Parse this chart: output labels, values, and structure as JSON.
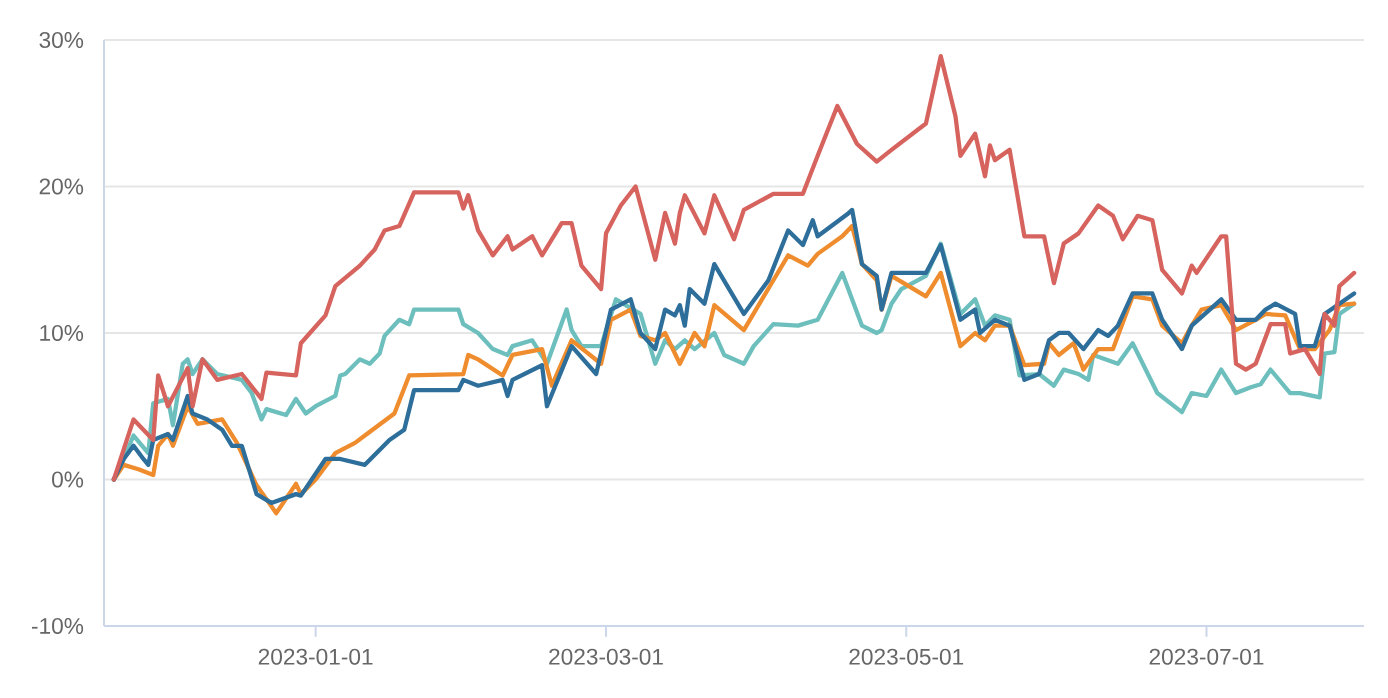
{
  "chart_data": {
    "type": "line",
    "grid": "y",
    "xlim": [
      "2022-11-19",
      "2023-08-02"
    ],
    "ylim": [
      -10,
      30
    ],
    "xticks": [
      {
        "value": "2023-01-01",
        "label": "2023-01-01"
      },
      {
        "value": "2023-03-01",
        "label": "2023-03-01"
      },
      {
        "value": "2023-05-01",
        "label": "2023-05-01"
      },
      {
        "value": "2023-07-01",
        "label": "2023-07-01"
      }
    ],
    "yticks": [
      {
        "value": -10,
        "label": "-10%"
      },
      {
        "value": 0,
        "label": "0%"
      },
      {
        "value": 10,
        "label": "10%"
      },
      {
        "value": 20,
        "label": "20%"
      },
      {
        "value": 30,
        "label": "30%"
      }
    ],
    "series": [
      {
        "color": "#6dbfbd",
        "x": [
          "2022-11-21",
          "2022-11-23",
          "2022-11-25",
          "2022-11-28",
          "2022-11-29",
          "2022-12-02",
          "2022-12-03",
          "2022-12-05",
          "2022-12-06",
          "2022-12-07",
          "2022-12-09",
          "2022-12-12",
          "2022-12-17",
          "2022-12-19",
          "2022-12-21",
          "2022-12-22",
          "2022-12-26",
          "2022-12-28",
          "2022-12-30",
          "2023-01-01",
          "2023-01-05",
          "2023-01-06",
          "2023-01-07",
          "2023-01-10",
          "2023-01-12",
          "2023-01-14",
          "2023-01-15",
          "2023-01-18",
          "2023-01-20",
          "2023-01-21",
          "2023-01-30",
          "2023-01-31",
          "2023-02-03",
          "2023-02-06",
          "2023-02-09",
          "2023-02-10",
          "2023-02-14",
          "2023-02-17",
          "2023-02-21",
          "2023-02-22",
          "2023-02-24",
          "2023-02-28",
          "2023-03-03",
          "2023-03-08",
          "2023-03-11",
          "2023-03-13",
          "2023-03-15",
          "2023-03-17",
          "2023-03-19",
          "2023-03-23",
          "2023-03-25",
          "2023-03-29",
          "2023-03-31",
          "2023-04-04",
          "2023-04-09",
          "2023-04-13",
          "2023-04-18",
          "2023-04-22",
          "2023-04-25",
          "2023-04-26",
          "2023-04-28",
          "2023-04-30",
          "2023-05-05",
          "2023-05-08",
          "2023-05-12",
          "2023-05-15",
          "2023-05-17",
          "2023-05-19",
          "2023-05-22",
          "2023-05-24",
          "2023-05-28",
          "2023-05-31",
          "2023-06-02",
          "2023-06-05",
          "2023-06-07",
          "2023-06-08",
          "2023-06-13",
          "2023-06-16",
          "2023-06-21",
          "2023-06-26",
          "2023-06-28",
          "2023-07-01",
          "2023-07-04",
          "2023-07-07",
          "2023-07-10",
          "2023-07-12",
          "2023-07-14",
          "2023-07-18",
          "2023-07-20",
          "2023-07-24",
          "2023-07-25",
          "2023-07-27",
          "2023-07-28",
          "2023-07-31"
        ],
        "values": [
          0,
          1.4,
          3,
          1.8,
          5.2,
          5.5,
          3.7,
          7.9,
          8.2,
          7.2,
          8.2,
          7.2,
          6.8,
          5.9,
          4.1,
          4.8,
          4.4,
          5.5,
          4.5,
          5,
          5.7,
          7.1,
          7.2,
          8.2,
          7.9,
          8.6,
          9.8,
          10.9,
          10.6,
          11.6,
          11.6,
          10.6,
          10,
          8.9,
          8.5,
          9.1,
          9.5,
          7.9,
          11.6,
          10.2,
          9.1,
          9.1,
          12.3,
          11.3,
          7.9,
          9.5,
          8.9,
          9.5,
          8.9,
          10,
          8.5,
          7.9,
          9.1,
          10.6,
          10.5,
          10.9,
          14.1,
          10.5,
          10,
          10.2,
          12,
          13,
          13.9,
          16.1,
          11.3,
          12.3,
          10.5,
          11.2,
          10.9,
          7.1,
          7.2,
          6.4,
          7.5,
          7.2,
          6.8,
          8.5,
          7.9,
          9.3,
          5.9,
          4.6,
          5.9,
          5.7,
          7.5,
          5.9,
          6.3,
          6.5,
          7.5,
          5.9,
          5.9,
          5.6,
          8.6,
          8.7,
          11.3,
          12
        ]
      },
      {
        "color": "#ef8c2e",
        "x": [
          "2022-11-21",
          "2022-11-23",
          "2022-11-26",
          "2022-11-29",
          "2022-11-30",
          "2022-12-02",
          "2022-12-03",
          "2022-12-06",
          "2022-12-08",
          "2022-12-13",
          "2022-12-16",
          "2022-12-20",
          "2022-12-24",
          "2022-12-28",
          "2022-12-29",
          "2023-01-01",
          "2023-01-05",
          "2023-01-09",
          "2023-01-11",
          "2023-01-17",
          "2023-01-20",
          "2023-01-31",
          "2023-02-01",
          "2023-02-03",
          "2023-02-08",
          "2023-02-10",
          "2023-02-16",
          "2023-02-18",
          "2023-02-22",
          "2023-02-28",
          "2023-03-02",
          "2023-03-06",
          "2023-03-08",
          "2023-03-11",
          "2023-03-13",
          "2023-03-16",
          "2023-03-19",
          "2023-03-21",
          "2023-03-23",
          "2023-03-29",
          "2023-04-04",
          "2023-04-07",
          "2023-04-11",
          "2023-04-13",
          "2023-04-18",
          "2023-04-20",
          "2023-04-22",
          "2023-04-25",
          "2023-04-26",
          "2023-04-28",
          "2023-05-05",
          "2023-05-08",
          "2023-05-12",
          "2023-05-15",
          "2023-05-17",
          "2023-05-19",
          "2023-05-22",
          "2023-05-25",
          "2023-05-29",
          "2023-05-30",
          "2023-06-01",
          "2023-06-04",
          "2023-06-06",
          "2023-06-09",
          "2023-06-12",
          "2023-06-16",
          "2023-06-20",
          "2023-06-22",
          "2023-06-26",
          "2023-06-28",
          "2023-06-30",
          "2023-07-04",
          "2023-07-07",
          "2023-07-11",
          "2023-07-13",
          "2023-07-17",
          "2023-07-20",
          "2023-07-23",
          "2023-07-26",
          "2023-07-28",
          "2023-07-31"
        ],
        "values": [
          0,
          1,
          0.7,
          0.3,
          2.3,
          3.1,
          2.3,
          5,
          3.8,
          4.1,
          2.5,
          -0.4,
          -2.3,
          -0.3,
          -1,
          0,
          1.8,
          2.5,
          3,
          4.5,
          7.1,
          7.2,
          8.5,
          8.2,
          7.1,
          8.5,
          8.9,
          6.4,
          9.5,
          7.9,
          10.9,
          11.6,
          9.8,
          9.5,
          10,
          7.9,
          10,
          9.1,
          11.9,
          10.2,
          13.6,
          15.3,
          14.6,
          15.4,
          16.6,
          17.3,
          14.7,
          13.6,
          11.6,
          13.9,
          12.5,
          14.1,
          9.1,
          10,
          9.5,
          10.5,
          10.5,
          7.8,
          7.9,
          9.3,
          8.5,
          9.3,
          7.5,
          8.9,
          8.9,
          12.5,
          12.3,
          10.5,
          9.3,
          10.5,
          11.6,
          11.9,
          10.2,
          10.9,
          11.3,
          11.2,
          8.9,
          8.9,
          10.2,
          11.9,
          12
        ]
      },
      {
        "color": "#2e6e9a",
        "x": [
          "2022-11-21",
          "2022-11-23",
          "2022-11-25",
          "2022-11-27",
          "2022-11-28",
          "2022-11-29",
          "2022-12-02",
          "2022-12-03",
          "2022-12-06",
          "2022-12-07",
          "2022-12-10",
          "2022-12-13",
          "2022-12-15",
          "2022-12-17",
          "2022-12-20",
          "2022-12-23",
          "2022-12-28",
          "2022-12-29",
          "2023-01-03",
          "2023-01-06",
          "2023-01-11",
          "2023-01-16",
          "2023-01-19",
          "2023-01-21",
          "2023-01-30",
          "2023-01-31",
          "2023-02-03",
          "2023-02-08",
          "2023-02-09",
          "2023-02-10",
          "2023-02-16",
          "2023-02-17",
          "2023-02-22",
          "2023-02-27",
          "2023-03-02",
          "2023-03-06",
          "2023-03-08",
          "2023-03-11",
          "2023-03-13",
          "2023-03-15",
          "2023-03-16",
          "2023-03-17",
          "2023-03-18",
          "2023-03-21",
          "2023-03-23",
          "2023-03-29",
          "2023-04-03",
          "2023-04-07",
          "2023-04-10",
          "2023-04-12",
          "2023-04-13",
          "2023-04-19",
          "2023-04-20",
          "2023-04-22",
          "2023-04-25",
          "2023-04-26",
          "2023-04-28",
          "2023-05-05",
          "2023-05-08",
          "2023-05-12",
          "2023-05-15",
          "2023-05-16",
          "2023-05-19",
          "2023-05-22",
          "2023-05-25",
          "2023-05-28",
          "2023-05-30",
          "2023-06-01",
          "2023-06-03",
          "2023-06-06",
          "2023-06-09",
          "2023-06-11",
          "2023-06-13",
          "2023-06-16",
          "2023-06-20",
          "2023-06-22",
          "2023-06-26",
          "2023-06-28",
          "2023-07-04",
          "2023-07-07",
          "2023-07-11",
          "2023-07-13",
          "2023-07-15",
          "2023-07-19",
          "2023-07-20",
          "2023-07-23",
          "2023-07-25",
          "2023-07-28",
          "2023-07-31"
        ],
        "values": [
          0,
          1.4,
          2.3,
          1.4,
          1,
          2.7,
          3.1,
          2.7,
          5.7,
          4.5,
          4.1,
          3.4,
          2.3,
          2.3,
          -1,
          -1.6,
          -1,
          -1.1,
          1.4,
          1.4,
          1,
          2.7,
          3.4,
          6.1,
          6.1,
          6.8,
          6.4,
          6.8,
          5.7,
          6.8,
          7.8,
          5,
          9.1,
          7.2,
          11.6,
          12.3,
          10,
          8.9,
          11.6,
          11.2,
          11.9,
          10.5,
          13,
          12,
          14.7,
          11.3,
          13.6,
          17,
          16,
          17.7,
          16.6,
          18.1,
          18.4,
          14.7,
          13.9,
          11.6,
          14.1,
          14.1,
          16,
          10.9,
          11.6,
          10,
          10.9,
          10.5,
          6.8,
          7.2,
          9.5,
          10,
          10,
          8.9,
          10.2,
          9.8,
          10.5,
          12.7,
          12.7,
          10.9,
          8.9,
          10.5,
          12.3,
          10.9,
          10.9,
          11.6,
          12,
          11.3,
          9.1,
          9.1,
          11.3,
          12,
          12.7
        ]
      },
      {
        "color": "#d6635d",
        "x": [
          "2022-11-21",
          "2022-11-25",
          "2022-11-29",
          "2022-11-30",
          "2022-12-02",
          "2022-12-06",
          "2022-12-07",
          "2022-12-09",
          "2022-12-12",
          "2022-12-17",
          "2022-12-21",
          "2022-12-22",
          "2022-12-28",
          "2022-12-29",
          "2023-01-03",
          "2023-01-05",
          "2023-01-10",
          "2023-01-13",
          "2023-01-15",
          "2023-01-18",
          "2023-01-21",
          "2023-01-30",
          "2023-01-31",
          "2023-02-01",
          "2023-02-03",
          "2023-02-06",
          "2023-02-09",
          "2023-02-10",
          "2023-02-14",
          "2023-02-16",
          "2023-02-20",
          "2023-02-22",
          "2023-02-24",
          "2023-02-28",
          "2023-03-01",
          "2023-03-04",
          "2023-03-07",
          "2023-03-11",
          "2023-03-13",
          "2023-03-15",
          "2023-03-16",
          "2023-03-17",
          "2023-03-21",
          "2023-03-23",
          "2023-03-27",
          "2023-03-29",
          "2023-04-04",
          "2023-04-10",
          "2023-04-13",
          "2023-04-17",
          "2023-04-21",
          "2023-04-25",
          "2023-04-28",
          "2023-05-05",
          "2023-05-08",
          "2023-05-11",
          "2023-05-12",
          "2023-05-15",
          "2023-05-17",
          "2023-05-18",
          "2023-05-19",
          "2023-05-22",
          "2023-05-25",
          "2023-05-29",
          "2023-05-31",
          "2023-06-02",
          "2023-06-05",
          "2023-06-09",
          "2023-06-12",
          "2023-06-14",
          "2023-06-17",
          "2023-06-20",
          "2023-06-22",
          "2023-06-26",
          "2023-06-28",
          "2023-06-29",
          "2023-07-04",
          "2023-07-05",
          "2023-07-07",
          "2023-07-09",
          "2023-07-11",
          "2023-07-14",
          "2023-07-17",
          "2023-07-18",
          "2023-07-21",
          "2023-07-24",
          "2023-07-25",
          "2023-07-27",
          "2023-07-28",
          "2023-07-31"
        ],
        "values": [
          0,
          4.1,
          2.7,
          7.1,
          5,
          7.6,
          5,
          8.2,
          6.8,
          7.2,
          5.5,
          7.3,
          7.1,
          9.3,
          11.2,
          13.2,
          14.6,
          15.7,
          17,
          17.3,
          19.6,
          19.6,
          18.5,
          19.4,
          17,
          15.3,
          16.6,
          15.7,
          16.6,
          15.3,
          17.5,
          17.5,
          14.6,
          13,
          16.8,
          18.7,
          20,
          15,
          18.2,
          16.1,
          18.2,
          19.4,
          16.8,
          19.4,
          16.4,
          18.4,
          19.5,
          19.5,
          22.1,
          25.5,
          22.9,
          21.7,
          22.5,
          24.3,
          28.9,
          24.8,
          22.1,
          23.6,
          20.7,
          22.8,
          21.8,
          22.5,
          16.6,
          16.6,
          13.4,
          16.1,
          16.8,
          18.7,
          18,
          16.4,
          18,
          17.7,
          14.3,
          12.7,
          14.6,
          14.1,
          16.6,
          16.6,
          7.9,
          7.5,
          7.9,
          10.6,
          10.6,
          8.6,
          8.9,
          7.2,
          11.3,
          10.5,
          13.2,
          14.1
        ]
      }
    ]
  }
}
